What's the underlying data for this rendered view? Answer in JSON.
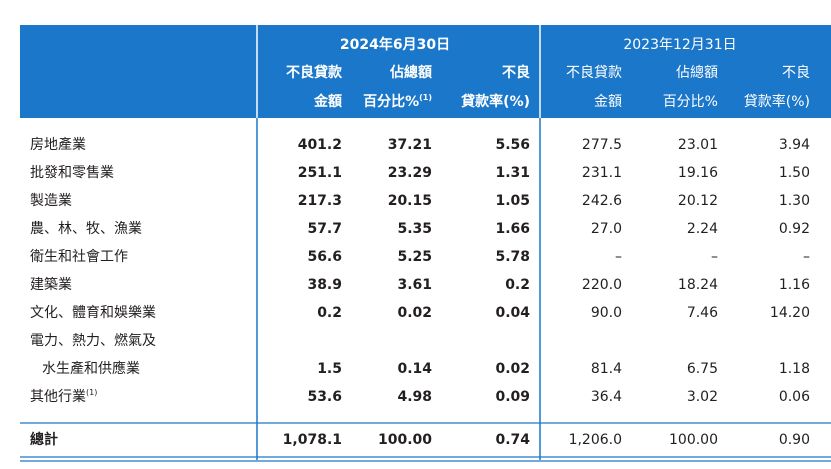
{
  "table": {
    "groups": [
      {
        "title": "2024年6月30日",
        "bold": true
      },
      {
        "title": "2023年12月31日",
        "bold": false
      }
    ],
    "columns": [
      {
        "line1": "不良貸款",
        "line2": "金額"
      },
      {
        "line1": "佔總額",
        "line2": "百分比%",
        "note": "(1)"
      },
      {
        "line1": "不良",
        "line2": "貸款率(%)"
      },
      {
        "line1": "不良貸款",
        "line2": "金額"
      },
      {
        "line1": "佔總額",
        "line2": "百分比%"
      },
      {
        "line1": "不良",
        "line2": "貸款率(%)"
      }
    ],
    "rows": [
      {
        "label": [
          "房地產業"
        ],
        "cells": [
          "401.2",
          "37.21",
          "5.56",
          "277.5",
          "23.01",
          "3.94"
        ]
      },
      {
        "label": [
          "批發和零售業"
        ],
        "cells": [
          "251.1",
          "23.29",
          "1.31",
          "231.1",
          "19.16",
          "1.50"
        ]
      },
      {
        "label": [
          "製造業"
        ],
        "cells": [
          "217.3",
          "20.15",
          "1.05",
          "242.6",
          "20.12",
          "1.30"
        ]
      },
      {
        "label": [
          "農、林、牧、漁業"
        ],
        "cells": [
          "57.7",
          "5.35",
          "1.66",
          "27.0",
          "2.24",
          "0.92"
        ]
      },
      {
        "label": [
          "衛生和社會工作"
        ],
        "cells": [
          "56.6",
          "5.25",
          "5.78",
          "–",
          "–",
          "–"
        ]
      },
      {
        "label": [
          "建築業"
        ],
        "cells": [
          "38.9",
          "3.61",
          "0.2",
          "220.0",
          "18.24",
          "1.16"
        ]
      },
      {
        "label": [
          "文化、體育和娛樂業"
        ],
        "cells": [
          "0.2",
          "0.02",
          "0.04",
          "90.0",
          "7.46",
          "14.20"
        ]
      },
      {
        "label": [
          "電力、熱力、燃氣及",
          "水生產和供應業"
        ],
        "cells": [
          "1.5",
          "0.14",
          "0.02",
          "81.4",
          "6.75",
          "1.18"
        ]
      },
      {
        "label": [
          "其他行業"
        ],
        "note": "(1)",
        "cells": [
          "53.6",
          "4.98",
          "0.09",
          "36.4",
          "3.02",
          "0.06"
        ]
      }
    ],
    "total": {
      "label": "總計",
      "cells": [
        "1,078.1",
        "100.00",
        "0.74",
        "1,206.0",
        "100.00",
        "0.90"
      ]
    }
  }
}
